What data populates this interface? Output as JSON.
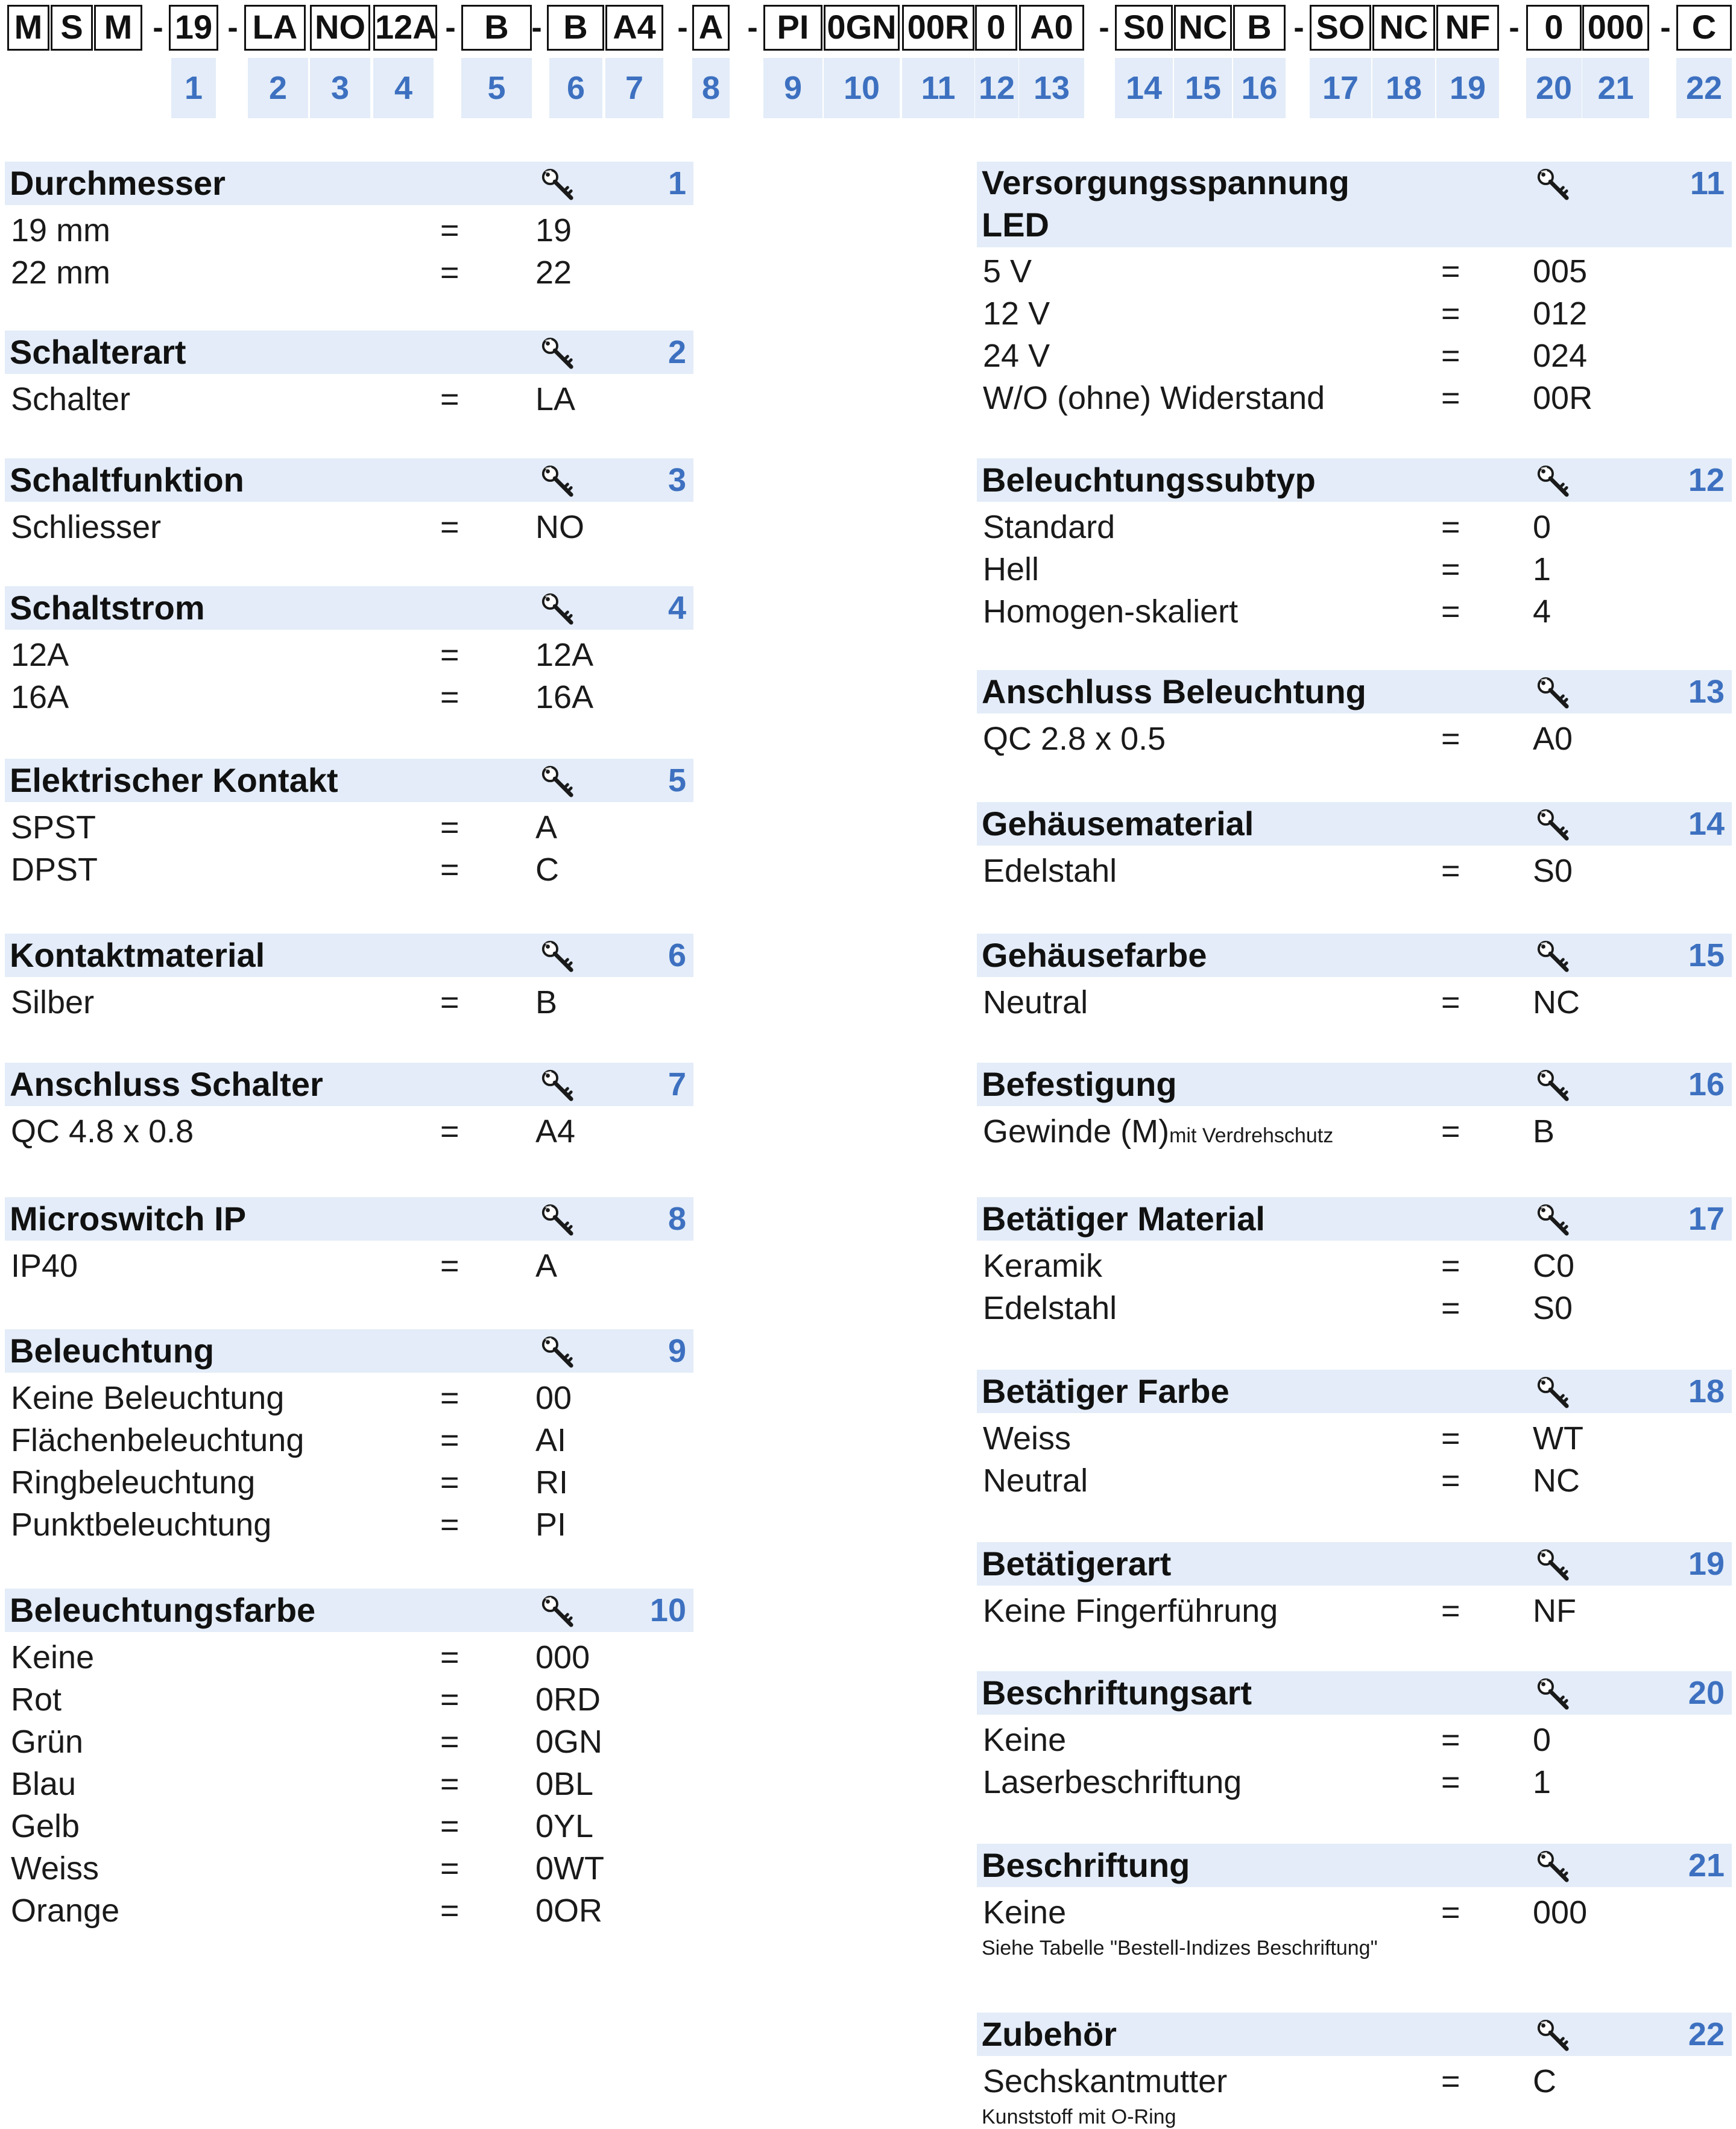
{
  "code_strip": {
    "boxes": [
      {
        "text": "M",
        "group": 0
      },
      {
        "text": "S",
        "group": 0
      },
      {
        "text": "M",
        "group": 0
      },
      {
        "text": "19",
        "group": 1
      },
      {
        "text": "LA",
        "group": 2
      },
      {
        "text": "NO",
        "group": 2
      },
      {
        "text": "12A",
        "group": 2
      },
      {
        "text": "B",
        "group": 3
      },
      {
        "text": "B",
        "group": 4
      },
      {
        "text": "A4",
        "group": 4
      },
      {
        "text": "A",
        "group": 5
      },
      {
        "text": "PI",
        "group": 6
      },
      {
        "text": "0GN",
        "group": 6
      },
      {
        "text": "00R",
        "group": 6
      },
      {
        "text": "0",
        "group": 6
      },
      {
        "text": "A0",
        "group": 6
      },
      {
        "text": "S0",
        "group": 7
      },
      {
        "text": "NC",
        "group": 7
      },
      {
        "text": "B",
        "group": 7
      },
      {
        "text": "SO",
        "group": 8
      },
      {
        "text": "NC",
        "group": 8
      },
      {
        "text": "NF",
        "group": 8
      },
      {
        "text": "0",
        "group": 9
      },
      {
        "text": "000",
        "group": 9
      },
      {
        "text": "C",
        "group": 10
      }
    ],
    "separator": "-",
    "numbers": [
      "1",
      "2",
      "3",
      "4",
      "5",
      "6",
      "7",
      "8",
      "9",
      "10",
      "11",
      "12",
      "13",
      "14",
      "15",
      "16",
      "17",
      "18",
      "19",
      "20",
      "21",
      "22"
    ]
  },
  "icon": "key-icon",
  "colors": {
    "header_bg": "#e3ecf8",
    "accent": "#3d70c0"
  },
  "left_sections": [
    {
      "title": "Durchmesser",
      "num": "1",
      "options": [
        {
          "label": "19 mm",
          "code": "19"
        },
        {
          "label": "22 mm",
          "code": "22"
        }
      ]
    },
    {
      "title": "Schalterart",
      "num": "2",
      "options": [
        {
          "label": "Schalter",
          "code": "LA"
        }
      ]
    },
    {
      "title": "Schaltfunktion",
      "num": "3",
      "options": [
        {
          "label": "Schliesser",
          "code": "NO"
        }
      ]
    },
    {
      "title": "Schaltstrom",
      "num": "4",
      "options": [
        {
          "label": "12A",
          "code": "12A"
        },
        {
          "label": "16A",
          "code": "16A"
        }
      ]
    },
    {
      "title": "Elektrischer Kontakt",
      "num": "5",
      "options": [
        {
          "label": "SPST",
          "code": "A"
        },
        {
          "label": "DPST",
          "code": "C"
        }
      ]
    },
    {
      "title": "Kontaktmaterial",
      "num": "6",
      "options": [
        {
          "label": "Silber",
          "code": "B"
        }
      ]
    },
    {
      "title": "Anschluss Schalter",
      "num": "7",
      "options": [
        {
          "label": "QC 4.8 x 0.8",
          "code": "A4"
        }
      ]
    },
    {
      "title": "Microswitch IP",
      "num": "8",
      "options": [
        {
          "label": "IP40",
          "code": "A"
        }
      ]
    },
    {
      "title": "Beleuchtung",
      "num": "9",
      "options": [
        {
          "label": "Keine Beleuchtung",
          "code": "00"
        },
        {
          "label": "Flächenbeleuchtung",
          "code": "AI"
        },
        {
          "label": "Ringbeleuchtung",
          "code": "RI"
        },
        {
          "label": "Punktbeleuchtung",
          "code": "PI"
        }
      ]
    },
    {
      "title": "Beleuchtungsfarbe",
      "num": "10",
      "options": [
        {
          "label": "Keine",
          "code": "000"
        },
        {
          "label": "Rot",
          "code": "0RD"
        },
        {
          "label": "Grün",
          "code": "0GN"
        },
        {
          "label": "Blau",
          "code": "0BL"
        },
        {
          "label": "Gelb",
          "code": "0YL"
        },
        {
          "label": "Weiss",
          "code": "0WT"
        },
        {
          "label": "Orange",
          "code": "0OR"
        }
      ]
    }
  ],
  "right_sections": [
    {
      "title": "Versorgungsspannung LED",
      "num": "11",
      "options": [
        {
          "label": "5 V",
          "code": "005"
        },
        {
          "label": "12 V",
          "code": "012"
        },
        {
          "label": "24 V",
          "code": "024"
        },
        {
          "label": "W/O (ohne) Widerstand",
          "code": "00R"
        }
      ]
    },
    {
      "title": "Beleuchtungssubtyp",
      "num": "12",
      "options": [
        {
          "label": "Standard",
          "code": "0"
        },
        {
          "label": "Hell",
          "code": "1"
        },
        {
          "label": "Homogen-skaliert",
          "code": "4"
        }
      ]
    },
    {
      "title": "Anschluss Beleuchtung",
      "num": "13",
      "options": [
        {
          "label": "QC 2.8 x 0.5",
          "code": "A0"
        }
      ]
    },
    {
      "title": "Gehäusematerial",
      "num": "14",
      "options": [
        {
          "label": "Edelstahl",
          "code": "S0"
        }
      ]
    },
    {
      "title": "Gehäusefarbe",
      "num": "15",
      "options": [
        {
          "label": "Neutral",
          "code": "NC"
        }
      ]
    },
    {
      "title": "Befestigung",
      "num": "16",
      "options": [
        {
          "label": "Gewinde (M)",
          "label_small": "mit Verdrehschutz",
          "code": "B"
        }
      ]
    },
    {
      "title": "Betätiger Material",
      "num": "17",
      "options": [
        {
          "label": "Keramik",
          "code": "C0"
        },
        {
          "label": "Edelstahl",
          "code": "S0"
        }
      ]
    },
    {
      "title": "Betätiger Farbe",
      "num": "18",
      "options": [
        {
          "label": "Weiss",
          "code": "WT"
        },
        {
          "label": "Neutral",
          "code": "NC"
        }
      ]
    },
    {
      "title": "Betätigerart",
      "num": "19",
      "options": [
        {
          "label": "Keine Fingerführung",
          "code": "NF"
        }
      ]
    },
    {
      "title": "Beschriftungsart",
      "num": "20",
      "options": [
        {
          "label": "Keine",
          "code": "0"
        },
        {
          "label": "Laserbeschriftung",
          "code": "1"
        }
      ]
    },
    {
      "title": "Beschriftung",
      "num": "21",
      "options": [
        {
          "label": "Keine",
          "code": "000"
        }
      ],
      "note": "Siehe Tabelle \"Bestell-Indizes Beschriftung\""
    },
    {
      "title": "Zubehör",
      "num": "22",
      "options": [
        {
          "label": "Sechskantmutter",
          "code": "C"
        }
      ],
      "note": "Kunststoff mit O-Ring"
    }
  ],
  "equals": "="
}
